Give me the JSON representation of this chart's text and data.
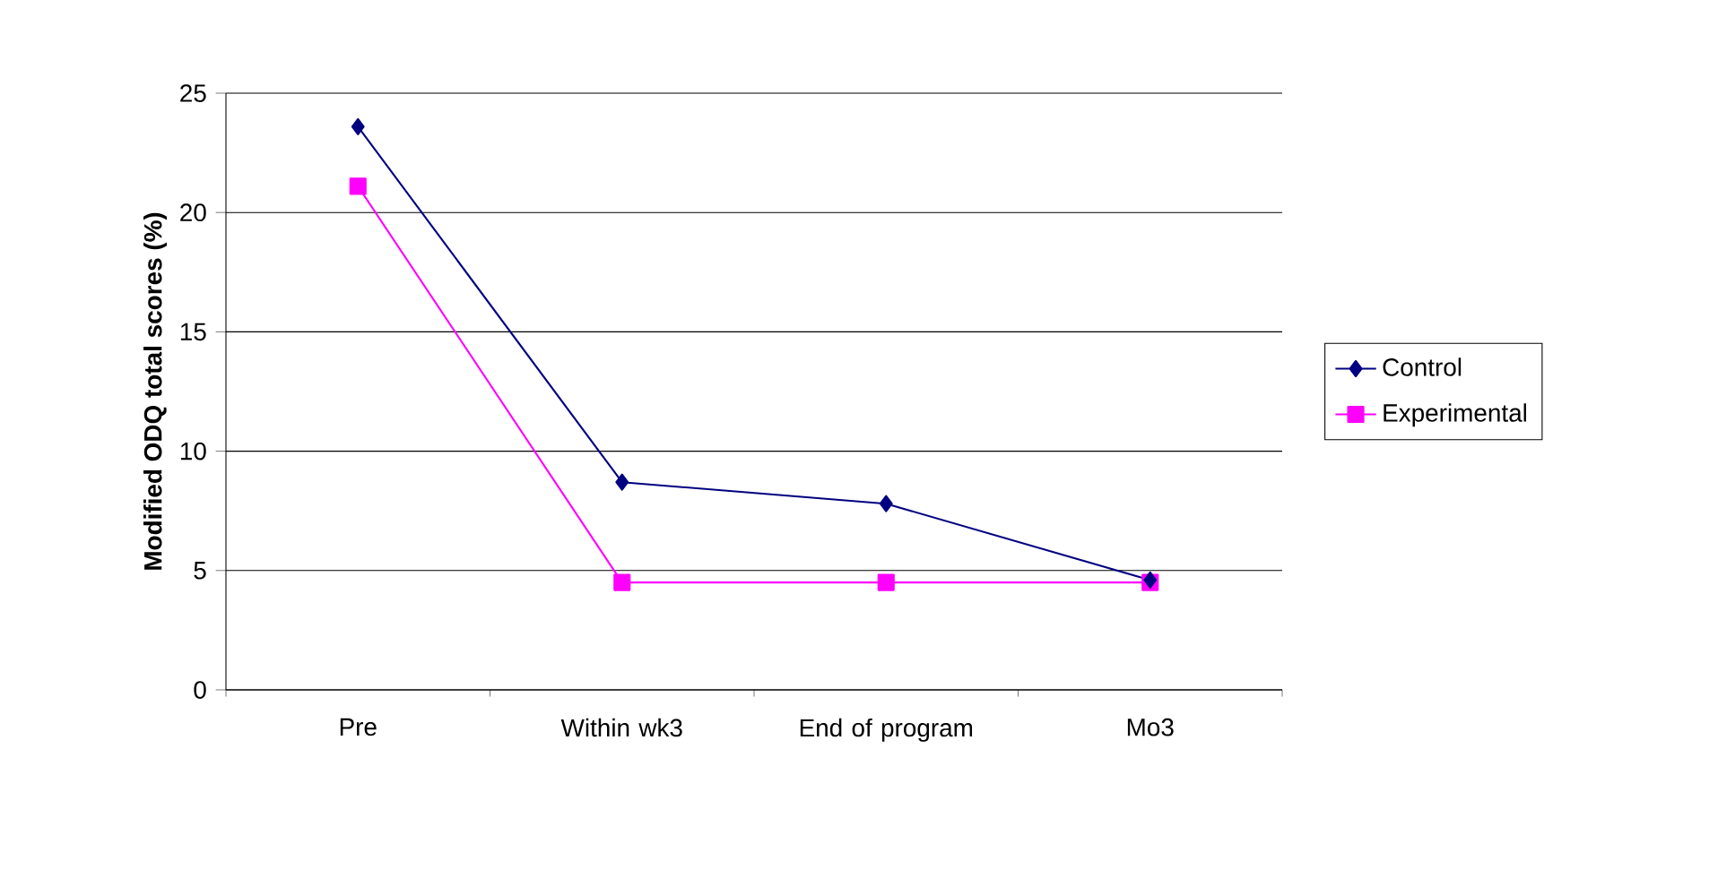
{
  "chart_data": {
    "type": "line",
    "ylabel": "Modified ODQ total scores (%)",
    "categories": [
      "Pre",
      "Within wk3",
      "End of program",
      "Mo3"
    ],
    "series": [
      {
        "name": "Control",
        "color": "#000080",
        "marker": "diamond",
        "values": [
          23.6,
          8.7,
          7.8,
          4.6
        ]
      },
      {
        "name": "Experimental",
        "color": "#ff00ff",
        "marker": "square",
        "values": [
          21.1,
          4.5,
          4.5,
          4.5
        ]
      }
    ],
    "ylim": [
      0,
      25
    ],
    "yticks": [
      0,
      5,
      10,
      15,
      20,
      25
    ],
    "grid": "y",
    "legend": "right"
  }
}
